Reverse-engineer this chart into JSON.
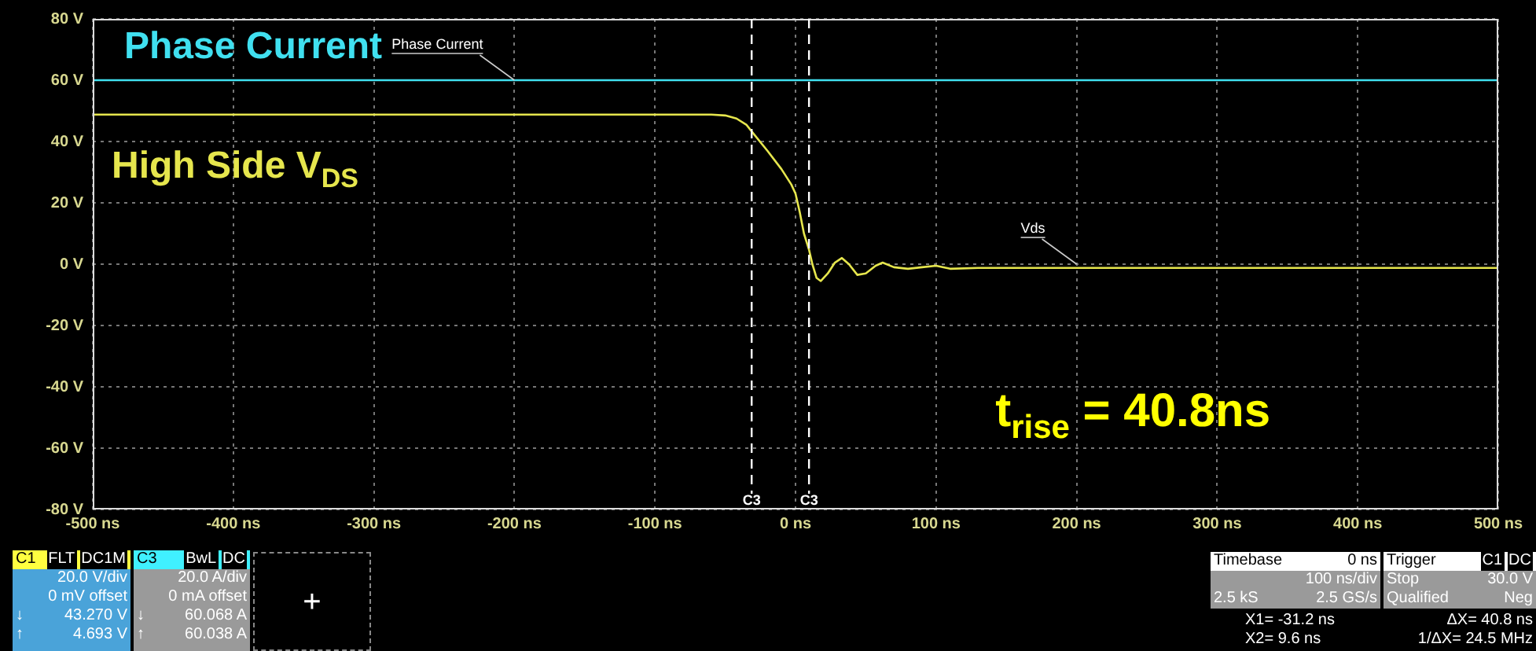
{
  "chart_data": {
    "type": "line",
    "title": "t$_{rise}$ = 40.8ns",
    "xlim": [
      -500,
      500
    ],
    "xticks": [
      {
        "value": -500,
        "label": "-500 ns"
      },
      {
        "value": -400,
        "label": "-400 ns"
      },
      {
        "value": -300,
        "label": "-300 ns"
      },
      {
        "value": -200,
        "label": "-200 ns"
      },
      {
        "value": -100,
        "label": "-100 ns"
      },
      {
        "value": 0,
        "label": "0 ns"
      },
      {
        "value": 100,
        "label": "100 ns"
      },
      {
        "value": 200,
        "label": "200 ns"
      },
      {
        "value": 300,
        "label": "300 ns"
      },
      {
        "value": 400,
        "label": "400 ns"
      },
      {
        "value": 500,
        "label": "500 ns"
      }
    ],
    "ylim": [
      -80,
      80
    ],
    "yticks": [
      {
        "value": -80,
        "label": "-80 V"
      },
      {
        "value": -60,
        "label": "-60 V"
      },
      {
        "value": -40,
        "label": "-40 V"
      },
      {
        "value": -20,
        "label": "-20 V"
      },
      {
        "value": 0,
        "label": "0 V"
      },
      {
        "value": 20,
        "label": "20 V"
      },
      {
        "value": 40,
        "label": "40 V"
      },
      {
        "value": 60,
        "label": "60 V"
      },
      {
        "value": 80,
        "label": "80 V"
      }
    ],
    "grid": true,
    "legend": false,
    "marker": "none",
    "line_style": "solid",
    "series": [
      {
        "name": "Phase Current",
        "color": "#40e0f0",
        "x": [
          -500,
          500
        ],
        "values": [
          60,
          60
        ]
      },
      {
        "name": "High Side V$_{DS}$",
        "color": "#e6e64d",
        "x": [
          -500,
          -100,
          -60,
          -50,
          -42,
          -35,
          -31.2,
          -20,
          -10,
          -3,
          0,
          3,
          6,
          9.6,
          12,
          15,
          18,
          23,
          28,
          33,
          38,
          44,
          50,
          57,
          62,
          70,
          80,
          90,
          100,
          110,
          130,
          200,
          500
        ],
        "values": [
          48.8,
          48.8,
          48.8,
          48.5,
          47.5,
          45.5,
          43.3,
          37,
          31,
          26,
          23,
          17,
          10,
          4.7,
          0,
          -4.5,
          -5.5,
          -3,
          0.5,
          2,
          0,
          -3.5,
          -3,
          -0.5,
          0.5,
          -1,
          -1.5,
          -1,
          -0.5,
          -1.5,
          -1.2,
          -1.2,
          -1.2
        ]
      }
    ],
    "ref_lines": [
      {
        "axis": "x",
        "value": -31.2,
        "label": "C3"
      },
      {
        "axis": "x",
        "value": 9.6,
        "label": "C3"
      }
    ],
    "annotations": [
      {
        "text": "Phase Current",
        "x": -200,
        "y": 60
      },
      {
        "text": "Vds",
        "x": 200,
        "y": 0
      },
      "C1",
      "FLT",
      "DC1M",
      "20.0 V/div",
      "0 mV offset",
      "↓",
      "43.270 V",
      "↑",
      "4.693 V",
      "C3",
      "BwL",
      "DC",
      "20.0 A/div",
      "0 mA offset",
      "↓",
      "60.068 A",
      "↑",
      "60.038 A",
      "+",
      "Timebase",
      "0 ns",
      "100 ns/div",
      "2.5 kS",
      "2.5 GS/s",
      "Trigger",
      "C1",
      "DC",
      "Stop",
      "30.0 V",
      "Qualified",
      "Neg",
      "X1= -31.2 ns",
      "ΔX= 40.8 ns",
      "X2= 9.6 ns",
      "1/ΔX= 24.5 MHz"
    ]
  }
}
